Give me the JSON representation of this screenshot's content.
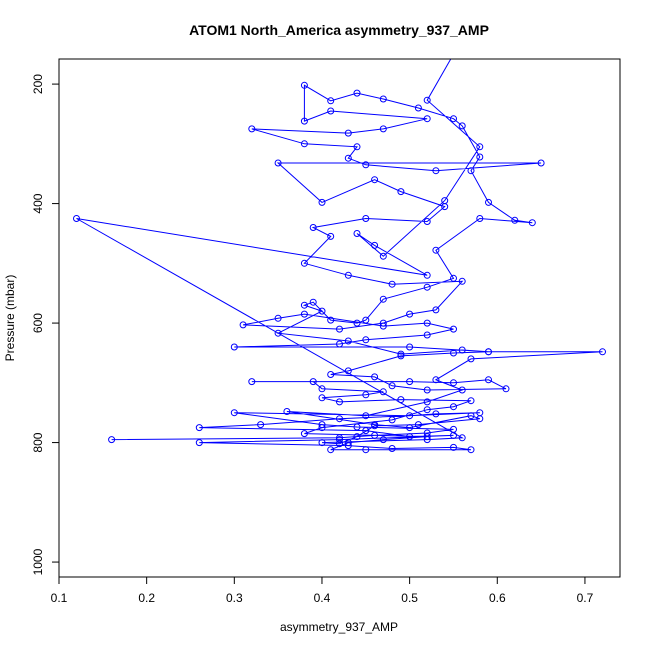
{
  "chart_data": {
    "type": "line",
    "title": "ATOM1 North_America asymmetry_937_AMP",
    "xlabel": "asymmetry_937_AMP",
    "ylabel": "Pressure (mbar)",
    "xlim": [
      0.1,
      0.74
    ],
    "ylim": [
      1025,
      158
    ],
    "y_inverted": true,
    "x_ticks": [
      0.1,
      0.2,
      0.3,
      0.4,
      0.5,
      0.6,
      0.7
    ],
    "x_tick_labels": [
      "0.1",
      "0.2",
      "0.3",
      "0.4",
      "0.5",
      "0.6",
      "0.7"
    ],
    "y_ticks": [
      200,
      400,
      600,
      800,
      1000
    ],
    "y_tick_labels": [
      "200",
      "400",
      "600",
      "800",
      "1000"
    ],
    "series_color": "#0000ff",
    "marker": "open-circle",
    "series": [
      {
        "name": "asymmetry_937_AMP",
        "points": [
          [
            0.16,
            795
          ],
          [
            0.42,
            792
          ],
          [
            0.46,
            788
          ],
          [
            0.52,
            784
          ],
          [
            0.55,
            778
          ],
          [
            0.44,
            774
          ],
          [
            0.4,
            770
          ],
          [
            0.3,
            750
          ],
          [
            0.5,
            755
          ],
          [
            0.53,
            752
          ],
          [
            0.58,
            750
          ],
          [
            0.42,
            760
          ],
          [
            0.33,
            770
          ],
          [
            0.26,
            775
          ],
          [
            0.45,
            780
          ],
          [
            0.5,
            790
          ],
          [
            0.55,
            788
          ],
          [
            0.42,
            795
          ],
          [
            0.26,
            800
          ],
          [
            0.43,
            805
          ],
          [
            0.48,
            810
          ],
          [
            0.55,
            808
          ],
          [
            0.57,
            812
          ],
          [
            0.45,
            812
          ],
          [
            0.41,
            812
          ],
          [
            0.43,
            800
          ],
          [
            0.47,
            795
          ],
          [
            0.52,
            790
          ],
          [
            0.38,
            785
          ],
          [
            0.4,
            775
          ],
          [
            0.48,
            762
          ],
          [
            0.52,
            745
          ],
          [
            0.55,
            740
          ],
          [
            0.57,
            730
          ],
          [
            0.49,
            728
          ],
          [
            0.42,
            732
          ],
          [
            0.4,
            725
          ],
          [
            0.45,
            720
          ],
          [
            0.47,
            715
          ],
          [
            0.4,
            710
          ],
          [
            0.39,
            698
          ],
          [
            0.32,
            698
          ],
          [
            0.5,
            698
          ],
          [
            0.55,
            700
          ],
          [
            0.59,
            695
          ],
          [
            0.61,
            710
          ],
          [
            0.52,
            712
          ],
          [
            0.48,
            705
          ],
          [
            0.46,
            690
          ],
          [
            0.41,
            686
          ],
          [
            0.43,
            680
          ],
          [
            0.49,
            655
          ],
          [
            0.55,
            650
          ],
          [
            0.59,
            648
          ],
          [
            0.5,
            640
          ],
          [
            0.3,
            640
          ],
          [
            0.42,
            635
          ],
          [
            0.45,
            628
          ],
          [
            0.52,
            620
          ],
          [
            0.55,
            610
          ],
          [
            0.52,
            600
          ],
          [
            0.47,
            605
          ],
          [
            0.38,
            585
          ],
          [
            0.35,
            592
          ],
          [
            0.31,
            603
          ],
          [
            0.42,
            610
          ],
          [
            0.47,
            600
          ],
          [
            0.5,
            585
          ],
          [
            0.53,
            578
          ],
          [
            0.56,
            530
          ],
          [
            0.48,
            535
          ],
          [
            0.43,
            520
          ],
          [
            0.38,
            500
          ],
          [
            0.41,
            455
          ],
          [
            0.39,
            440
          ],
          [
            0.45,
            425
          ],
          [
            0.52,
            430
          ],
          [
            0.54,
            405
          ],
          [
            0.49,
            380
          ],
          [
            0.46,
            360
          ],
          [
            0.4,
            398
          ],
          [
            0.35,
            332
          ],
          [
            0.65,
            332
          ],
          [
            0.53,
            345
          ],
          [
            0.45,
            335
          ],
          [
            0.43,
            324
          ],
          [
            0.44,
            305
          ],
          [
            0.38,
            300
          ],
          [
            0.32,
            275
          ],
          [
            0.43,
            282
          ],
          [
            0.47,
            275
          ],
          [
            0.52,
            258
          ],
          [
            0.41,
            245
          ],
          [
            0.38,
            262
          ],
          [
            0.38,
            202
          ],
          [
            0.41,
            228
          ],
          [
            0.44,
            215
          ],
          [
            0.47,
            225
          ],
          [
            0.51,
            240
          ],
          [
            0.55,
            258
          ],
          [
            0.56,
            270
          ],
          [
            0.58,
            322
          ],
          [
            0.57,
            345
          ],
          [
            0.59,
            398
          ],
          [
            0.62,
            428
          ],
          [
            0.64,
            432
          ],
          [
            0.58,
            425
          ],
          [
            0.53,
            478
          ],
          [
            0.55,
            525
          ],
          [
            0.52,
            540
          ],
          [
            0.47,
            560
          ],
          [
            0.45,
            595
          ],
          [
            0.44,
            600
          ],
          [
            0.41,
            595
          ],
          [
            0.39,
            565
          ],
          [
            0.38,
            570
          ],
          [
            0.4,
            580
          ],
          [
            0.35,
            617
          ],
          [
            0.43,
            630
          ],
          [
            0.49,
            652
          ],
          [
            0.56,
            645
          ],
          [
            0.59,
            648
          ],
          [
            0.72,
            648
          ],
          [
            0.57,
            660
          ],
          [
            0.53,
            695
          ],
          [
            0.56,
            712
          ],
          [
            0.52,
            732
          ],
          [
            0.45,
            755
          ],
          [
            0.36,
            748
          ],
          [
            0.46,
            770
          ],
          [
            0.5,
            775
          ],
          [
            0.57,
            755
          ],
          [
            0.58,
            760
          ],
          [
            0.51,
            770
          ],
          [
            0.46,
            772
          ],
          [
            0.44,
            790
          ],
          [
            0.42,
            802
          ],
          [
            0.4,
            800
          ],
          [
            0.52,
            795
          ],
          [
            0.56,
            792
          ],
          [
            0.12,
            425
          ],
          [
            0.52,
            520
          ],
          [
            0.46,
            470
          ],
          [
            0.44,
            450
          ],
          [
            0.47,
            488
          ],
          [
            0.54,
            395
          ],
          [
            0.58,
            305
          ],
          [
            0.52,
            227
          ],
          [
            0.55,
            150
          ]
        ]
      }
    ]
  }
}
